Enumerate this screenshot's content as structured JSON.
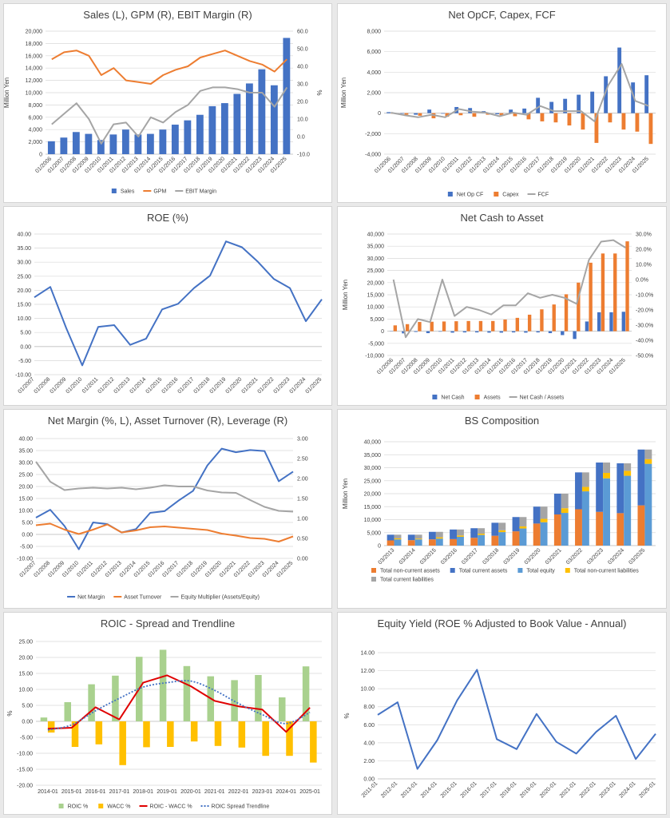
{
  "colors": {
    "blue": "#4472C4",
    "orange": "#ED7D31",
    "gray": "#A5A5A5",
    "yellow": "#FFC000",
    "lightblue": "#5B9BD5",
    "green": "#A9D18E",
    "red": "#E00000"
  },
  "chart_data": [
    {
      "id": "c1",
      "type": "bar+line",
      "title": "Sales (L), GPM (R), EBIT Margin (R)",
      "ylabel": "Million Yen",
      "y2label": "%",
      "categories": [
        "01/2006",
        "01/2007",
        "01/2008",
        "01/2009",
        "01/2010",
        "01/2011",
        "01/2012",
        "01/2013",
        "01/2014",
        "01/2015",
        "01/2016",
        "01/2017",
        "01/2018",
        "01/2019",
        "01/2020",
        "01/2021",
        "01/2022",
        "01/2023",
        "01/2024",
        "01/2025"
      ],
      "ylim": [
        0,
        20000
      ],
      "yticks": [
        "0",
        "2,000",
        "4,000",
        "6,000",
        "8,000",
        "10,000",
        "12,000",
        "14,000",
        "16,000",
        "18,000",
        "20,000"
      ],
      "y2lim": [
        -10,
        60
      ],
      "y2ticks": [
        "-10.0",
        "0.0",
        "10.0",
        "20.0",
        "30.0",
        "40.0",
        "50.0",
        "60.0"
      ],
      "series": [
        {
          "name": "Sales",
          "kind": "bar",
          "axis": "left",
          "color": "#4472C4",
          "values": [
            2100,
            2700,
            3600,
            3300,
            2300,
            3200,
            4000,
            3200,
            3300,
            4000,
            4800,
            5500,
            6400,
            7800,
            8300,
            9800,
            11500,
            13800,
            11200,
            18900
          ]
        },
        {
          "name": "GPM",
          "kind": "line",
          "axis": "right",
          "color": "#ED7D31",
          "values": [
            44,
            48,
            49,
            46,
            35,
            39,
            32,
            31,
            30,
            35,
            38,
            40,
            45,
            47,
            49,
            46,
            43,
            41,
            37,
            44
          ]
        },
        {
          "name": "EBIT Margin",
          "kind": "line",
          "axis": "right",
          "color": "#A5A5A5",
          "values": [
            7,
            13,
            19,
            10,
            -4,
            7,
            8,
            0,
            11,
            8,
            14,
            18,
            26,
            28,
            28,
            27,
            25,
            25,
            17,
            28
          ]
        }
      ]
    },
    {
      "id": "c2",
      "type": "bar+line",
      "title": "Net OpCF, Capex, FCF",
      "ylabel": "Million Yen",
      "categories": [
        "01/2006",
        "01/2007",
        "01/2008",
        "01/2009",
        "01/2010",
        "01/2011",
        "01/2012",
        "01/2013",
        "01/2014",
        "01/2015",
        "01/2016",
        "01/2017",
        "01/2018",
        "01/2019",
        "01/2020",
        "01/2021",
        "01/2022",
        "01/2023",
        "01/2024",
        "01/2025"
      ],
      "ylim": [
        -4000,
        8000
      ],
      "yticks": [
        "-4,000",
        "-2,000",
        "0",
        "2,000",
        "4,000",
        "6,000",
        "8,000"
      ],
      "series": [
        {
          "name": "Net Op CF",
          "kind": "bar",
          "color": "#4472C4",
          "values": [
            100,
            -50,
            -150,
            350,
            -50,
            600,
            500,
            200,
            -100,
            350,
            450,
            1500,
            1100,
            1400,
            1800,
            2100,
            3600,
            6400,
            3000,
            3700
          ]
        },
        {
          "name": "Capex",
          "kind": "bar",
          "color": "#ED7D31",
          "values": [
            -50,
            -150,
            -250,
            -500,
            -350,
            -200,
            -350,
            -150,
            -200,
            -300,
            -600,
            -800,
            -900,
            -1200,
            -1600,
            -2900,
            -900,
            -1600,
            -1800,
            -3000
          ]
        },
        {
          "name": "FCF",
          "kind": "line",
          "color": "#A5A5A5",
          "values": [
            50,
            -200,
            -400,
            -150,
            -400,
            400,
            150,
            50,
            -300,
            50,
            -150,
            700,
            200,
            200,
            200,
            -800,
            2700,
            4800,
            1200,
            700
          ]
        }
      ]
    },
    {
      "id": "c3",
      "type": "line",
      "title": "ROE (%)",
      "categories": [
        "01/2007",
        "01/2008",
        "01/2009",
        "01/2010",
        "01/2011",
        "01/2012",
        "01/2013",
        "01/2014",
        "01/2015",
        "01/2016",
        "01/2017",
        "01/2018",
        "01/2019",
        "01/2020",
        "01/2021",
        "01/2022",
        "01/2023",
        "01/2024",
        "01/2025"
      ],
      "ylim": [
        -10,
        40
      ],
      "yticks": [
        "-10.00",
        "-5.00",
        "0.00",
        "5.00",
        "10.00",
        "15.00",
        "20.00",
        "25.00",
        "30.00",
        "35.00",
        "40.00"
      ],
      "series": [
        {
          "name": "ROE",
          "kind": "line",
          "color": "#4472C4",
          "values": [
            17.5,
            21.2,
            6.5,
            -6.7,
            7,
            7.6,
            0.6,
            2.8,
            13.2,
            15.2,
            20.8,
            25.2,
            37.4,
            35.3,
            30.1,
            24,
            20.8,
            9,
            16.8
          ]
        }
      ]
    },
    {
      "id": "c4",
      "type": "bar+line",
      "title": "Net Cash to Asset",
      "ylabel": "Million Yen",
      "categories": [
        "01/2006",
        "01/2007",
        "01/2008",
        "01/2009",
        "01/2010",
        "01/2011",
        "01/2012",
        "01/2013",
        "01/2014",
        "01/2015",
        "01/2016",
        "01/2017",
        "01/2018",
        "01/2019",
        "01/2020",
        "01/2021",
        "01/2022",
        "01/2023",
        "01/2024",
        "01/2025"
      ],
      "ylim": [
        -10000,
        40000
      ],
      "yticks": [
        "-10,000",
        "-5,000",
        "0",
        "5,000",
        "10,000",
        "15,000",
        "20,000",
        "25,000",
        "30,000",
        "35,000",
        "40,000"
      ],
      "y2lim": [
        -50,
        30
      ],
      "y2ticks": [
        "-50.0%",
        "-40.0%",
        "-30.0%",
        "-20.0%",
        "-10.0%",
        "0.0%",
        "10.0%",
        "20.0%",
        "30.0%"
      ],
      "series": [
        {
          "name": "Net Cash",
          "kind": "bar",
          "axis": "left",
          "color": "#4472C4",
          "values": [
            -100,
            -900,
            -300,
            -800,
            -200,
            -600,
            -500,
            -500,
            -600,
            -600,
            -500,
            -600,
            -500,
            -800,
            -1600,
            -3200,
            4000,
            7800,
            7800,
            8000
          ]
        },
        {
          "name": "Assets",
          "kind": "bar",
          "axis": "left",
          "color": "#ED7D31",
          "values": [
            2400,
            2900,
            3800,
            3900,
            4000,
            4100,
            4200,
            4200,
            4200,
            4800,
            5500,
            6800,
            9000,
            11000,
            15200,
            20000,
            28200,
            32000,
            32000,
            37000
          ]
        },
        {
          "name": "Net Cash / Assets",
          "kind": "line",
          "axis": "right",
          "color": "#A5A5A5",
          "values": [
            0,
            -38,
            -26,
            -28,
            0,
            -24,
            -18,
            -20,
            -23,
            -17,
            -17,
            -9,
            -12,
            -10,
            -12,
            -16,
            13,
            25,
            26,
            21
          ]
        }
      ]
    },
    {
      "id": "c5",
      "type": "line",
      "title": "Net Margin (%, L), Asset Turnover (R), Leverage (R)",
      "categories": [
        "01/2007",
        "01/2008",
        "01/2009",
        "01/2010",
        "01/2011",
        "01/2012",
        "01/2013",
        "01/2014",
        "01/2015",
        "01/2016",
        "01/2017",
        "01/2018",
        "01/2019",
        "01/2020",
        "01/2021",
        "01/2022",
        "01/2023",
        "01/2024",
        "01/2025"
      ],
      "ylim": [
        -10,
        40
      ],
      "yticks": [
        "-10.00",
        "-5.00",
        "0.00",
        "5.00",
        "10.00",
        "15.00",
        "20.00",
        "25.00",
        "30.00",
        "35.00",
        "40.00"
      ],
      "y2lim": [
        0,
        3
      ],
      "y2ticks": [
        "0.00",
        "0.50",
        "1.00",
        "1.50",
        "2.00",
        "2.50",
        "3.00"
      ],
      "series": [
        {
          "name": "Net Margin",
          "kind": "line",
          "axis": "left",
          "color": "#4472C4",
          "values": [
            7,
            10.3,
            3.5,
            -6.2,
            5,
            4.3,
            0.8,
            2.2,
            9,
            9.7,
            14.2,
            18.2,
            28.8,
            35.8,
            34.3,
            35.2,
            34.8,
            22.2,
            26.2
          ]
        },
        {
          "name": "Asset Turnover",
          "kind": "line",
          "axis": "right",
          "color": "#ED7D31",
          "values": [
            0.83,
            0.87,
            0.72,
            0.61,
            0.72,
            0.85,
            0.65,
            0.7,
            0.78,
            0.8,
            0.77,
            0.74,
            0.71,
            0.62,
            0.57,
            0.51,
            0.49,
            0.42,
            0.55
          ]
        },
        {
          "name": "Equity Multiplier (Assets/Equity)",
          "kind": "line",
          "axis": "right",
          "color": "#A5A5A5",
          "values": [
            2.42,
            1.92,
            1.71,
            1.75,
            1.77,
            1.75,
            1.77,
            1.73,
            1.77,
            1.83,
            1.8,
            1.8,
            1.7,
            1.65,
            1.64,
            1.46,
            1.29,
            1.19,
            1.17
          ]
        }
      ]
    },
    {
      "id": "c6",
      "type": "stacked-bar",
      "title": "BS Composition",
      "ylabel": "Million Yen",
      "categories": [
        "03/2013",
        "03/2014",
        "03/2015",
        "03/2016",
        "03/2017",
        "03/2018",
        "03/2019",
        "03/2020",
        "03/2021",
        "03/2022",
        "03/2023",
        "03/2024",
        "03/2025"
      ],
      "ylim": [
        0,
        40000
      ],
      "yticks": [
        "0",
        "5,000",
        "10,000",
        "15,000",
        "20,000",
        "25,000",
        "30,000",
        "35,000",
        "40,000"
      ],
      "groups": [
        {
          "stack": "assets",
          "series": [
            {
              "name": "Total non-current assets",
              "color": "#ED7D31"
            },
            {
              "name": "Total current assets",
              "color": "#4472C4"
            }
          ]
        },
        {
          "stack": "claims",
          "series": [
            {
              "name": "Total equity",
              "color": "#5B9BD5"
            },
            {
              "name": "Total non-current liabilities",
              "color": "#FFC000"
            },
            {
              "name": "Total current liabilities",
              "color": "#A5A5A5"
            }
          ]
        }
      ],
      "series": [
        {
          "name": "Total non-current assets",
          "color": "#ED7D31",
          "stack": "assets",
          "values": [
            2000,
            2100,
            2400,
            2500,
            3000,
            3800,
            5500,
            8500,
            12000,
            14000,
            13000,
            12500,
            15500
          ]
        },
        {
          "name": "Total current assets",
          "color": "#4472C4",
          "stack": "assets",
          "values": [
            2200,
            2100,
            2900,
            3700,
            3700,
            5000,
            5500,
            6500,
            8000,
            14200,
            19000,
            19200,
            21500
          ]
        },
        {
          "name": "Total equity",
          "color": "#5B9BD5",
          "stack": "claims",
          "values": [
            2400,
            2400,
            2700,
            3400,
            4100,
            5200,
            6600,
            9000,
            12600,
            20900,
            25900,
            26900,
            31500
          ]
        },
        {
          "name": "Total non-current liabilities",
          "color": "#FFC000",
          "stack": "claims",
          "values": [
            400,
            300,
            500,
            500,
            500,
            700,
            800,
            1300,
            1800,
            1700,
            2100,
            1900,
            1800
          ]
        },
        {
          "name": "Total current liabilities",
          "color": "#A5A5A5",
          "stack": "claims",
          "values": [
            1400,
            1500,
            2100,
            2300,
            2100,
            2900,
            3600,
            4700,
            5600,
            5600,
            4000,
            2900,
            3700
          ]
        }
      ]
    },
    {
      "id": "c7",
      "type": "bar+line",
      "title": "ROIC - Spread and Trendline",
      "ylabel": "%",
      "categories": [
        "2014-01",
        "2015-01",
        "2016-01",
        "2017-01",
        "2018-01",
        "2019-01",
        "2020-01",
        "2021-01",
        "2022-01",
        "2023-01",
        "2024-01",
        "2025-01"
      ],
      "ylim": [
        -20,
        25
      ],
      "yticks": [
        "-20.00",
        "-15.00",
        "-10.00",
        "-5.00",
        "0.00",
        "5.00",
        "10.00",
        "15.00",
        "20.00",
        "25.00"
      ],
      "series": [
        {
          "name": "ROIC %",
          "kind": "bar",
          "color": "#A9D18E",
          "values": [
            1.2,
            6,
            11.6,
            14.3,
            20.2,
            22.4,
            17.3,
            14.1,
            12.9,
            14.5,
            7.5,
            17.2
          ]
        },
        {
          "name": "WACC %",
          "kind": "bar",
          "color": "#FFC000",
          "values": [
            -3.5,
            -8,
            -7.2,
            -13.7,
            -8.1,
            -8,
            -6.3,
            -7.7,
            -8.2,
            -10.8,
            -10.8,
            -12.9
          ]
        },
        {
          "name": "ROIC - WACC %",
          "kind": "line",
          "color": "#E00000",
          "values": [
            -2.3,
            -2,
            4.4,
            0.6,
            12.1,
            14.4,
            11,
            6.4,
            4.7,
            3.7,
            -3.3,
            4.3
          ]
        },
        {
          "name": "ROIC Spread Trendline",
          "kind": "trend",
          "color": "#4472C4",
          "values": [
            -2.7,
            -1.1,
            3.3,
            7.2,
            10.7,
            12.1,
            12.6,
            9.7,
            5.6,
            2.1,
            -0.7,
            2.8
          ]
        }
      ]
    },
    {
      "id": "c8",
      "type": "line",
      "title": "Equity Yield (ROE % Adjusted to Book Value - Annual)",
      "ylabel": "%",
      "categories": [
        "2011-01",
        "2012-01",
        "2013-01",
        "2014-01",
        "2015-01",
        "2016-01",
        "2017-01",
        "2018-01",
        "2019-01",
        "2020-01",
        "2021-01",
        "2022-01",
        "2023-01",
        "2024-01",
        "2025-01"
      ],
      "ylim": [
        0,
        14
      ],
      "yticks": [
        "0.00",
        "2.00",
        "4.00",
        "6.00",
        "8.00",
        "10.00",
        "12.00",
        "14.00"
      ],
      "series": [
        {
          "name": "Equity Yield",
          "kind": "line",
          "color": "#4472C4",
          "values": [
            7.1,
            8.5,
            1.1,
            4.3,
            8.7,
            12.1,
            4.4,
            3.3,
            7.2,
            4.1,
            2.8,
            5.2,
            7.0,
            2.2,
            5.0
          ]
        }
      ]
    }
  ]
}
